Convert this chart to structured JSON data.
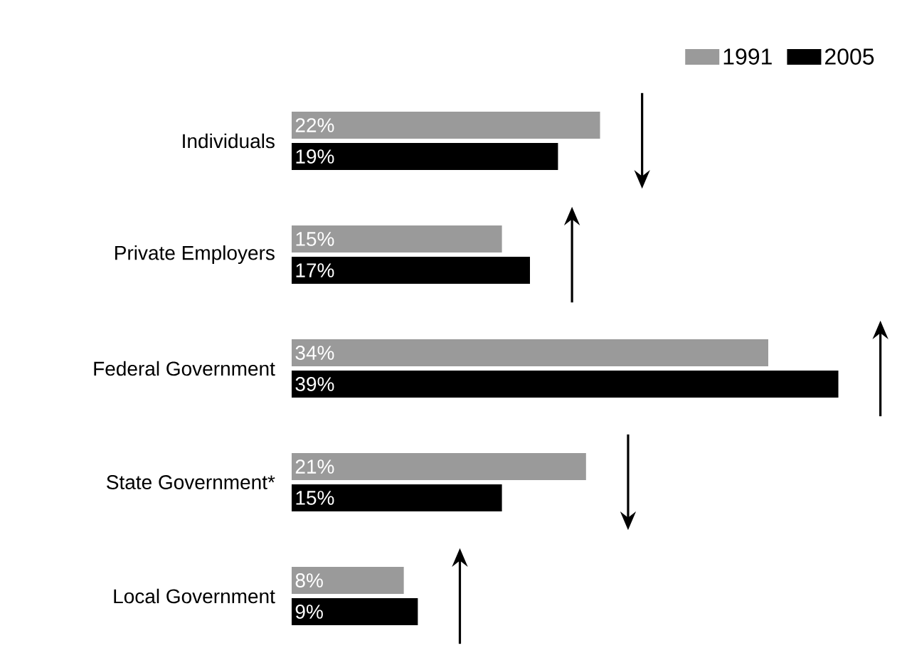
{
  "chart_data": {
    "type": "bar",
    "orientation": "horizontal",
    "categories": [
      "Individuals",
      "Private Employers",
      "Federal Government",
      "State Government*",
      "Local Government"
    ],
    "series": [
      {
        "name": "1991",
        "color": "#9a9a9a",
        "values": [
          22,
          15,
          34,
          21,
          8
        ],
        "value_labels": [
          "22%",
          "15%",
          "34%",
          "21%",
          "8%"
        ]
      },
      {
        "name": "2005",
        "color": "#000000",
        "values": [
          19,
          17,
          39,
          15,
          9
        ],
        "value_labels": [
          "19%",
          "17%",
          "39%",
          "15%",
          "9%"
        ]
      }
    ],
    "data_labels": true,
    "legend": "top right"
  }
}
